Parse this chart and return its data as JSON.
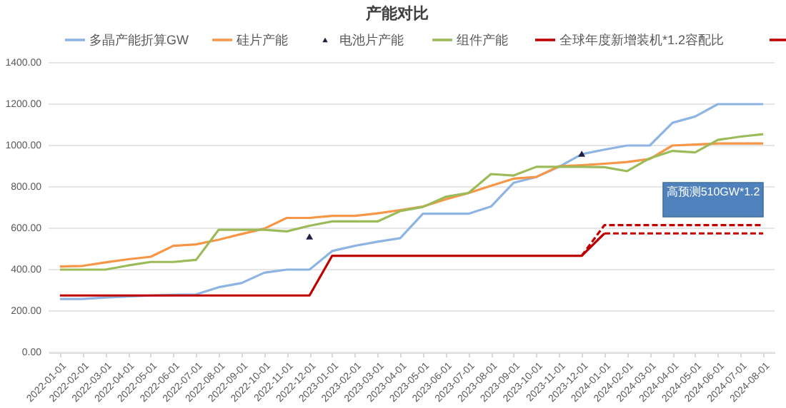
{
  "chart_data": {
    "type": "line",
    "title": "产能对比",
    "categories": [
      "2022-01-01",
      "2022-02-01",
      "2022-03-01",
      "2022-04-01",
      "2022-05-01",
      "2022-06-01",
      "2022-07-01",
      "2022-08-01",
      "2022-09-01",
      "2022-10-01",
      "2022-11-01",
      "2022-12-01",
      "2023-01-01",
      "2023-02-01",
      "2023-03-01",
      "2023-04-01",
      "2023-05-01",
      "2023-06-01",
      "2023-07-01",
      "2023-08-01",
      "2023-09-01",
      "2023-10-01",
      "2023-11-01",
      "2023-12-01",
      "2024-01-01",
      "2024-02-01",
      "2024-03-01",
      "2024-04-01",
      "2024-05-01",
      "2024-06-01",
      "2024-07-01",
      "2024-08-01"
    ],
    "ylim": [
      0,
      1400
    ],
    "yticks": [
      {
        "value": 0,
        "label": "0.00"
      },
      {
        "value": 200,
        "label": "200.00"
      },
      {
        "value": 400,
        "label": "400.00"
      },
      {
        "value": 600,
        "label": "600.00"
      },
      {
        "value": 800,
        "label": "800.00"
      },
      {
        "value": 1000,
        "label": "1000.00"
      },
      {
        "value": 1200,
        "label": "1200.00"
      },
      {
        "value": 1400,
        "label": "1400.00"
      }
    ],
    "grid": "y",
    "legend": "top",
    "marker": "none",
    "line_style": "solid",
    "annotations": [
      "高预测510GW*1.2"
    ],
    "series": [
      {
        "name": "多晶产能折算GW",
        "color": "#8db4e2",
        "values": [
          258,
          258,
          265,
          270,
          275,
          278,
          280,
          315,
          335,
          385,
          400,
          400,
          490,
          515,
          535,
          552,
          670,
          670,
          670,
          705,
          820,
          848,
          897,
          958,
          980,
          1000,
          1000,
          1110,
          1140,
          1200,
          1200,
          1200
        ]
      },
      {
        "name": "硅片产能",
        "color": "#f79646",
        "values": [
          415,
          418,
          435,
          450,
          462,
          515,
          522,
          545,
          572,
          598,
          650,
          650,
          660,
          660,
          672,
          688,
          705,
          740,
          770,
          805,
          840,
          848,
          900,
          905,
          912,
          920,
          935,
          1000,
          1005,
          1010,
          1010,
          1010
        ]
      },
      {
        "name": "电池片产能",
        "type": "scatter",
        "color": "#1f1f3f",
        "marker": "triangle",
        "values": [
          null,
          null,
          null,
          null,
          null,
          null,
          null,
          null,
          null,
          null,
          null,
          560,
          null,
          null,
          null,
          null,
          null,
          null,
          null,
          null,
          null,
          null,
          null,
          960,
          null,
          null,
          null,
          null,
          null,
          null,
          null,
          null
        ]
      },
      {
        "name": "组件产能",
        "color": "#9bbb59",
        "values": [
          400,
          400,
          400,
          420,
          437,
          437,
          447,
          593,
          593,
          593,
          585,
          612,
          633,
          633,
          633,
          683,
          703,
          752,
          770,
          862,
          855,
          897,
          897,
          897,
          895,
          876,
          938,
          974,
          967,
          1027,
          1043,
          1055
        ]
      },
      {
        "name": "全球年度新增装机*1.2容配比",
        "color": "#c00000",
        "values": [
          275,
          275,
          275,
          275,
          275,
          275,
          275,
          275,
          275,
          275,
          275,
          275,
          467,
          467,
          467,
          467,
          467,
          467,
          467,
          467,
          467,
          467,
          467,
          467,
          575,
          null,
          null,
          null,
          null,
          null,
          null,
          null
        ]
      },
      {
        "color": "#c00000",
        "line_style": "dashed",
        "values": [
          null,
          null,
          null,
          null,
          null,
          null,
          null,
          null,
          null,
          null,
          null,
          null,
          null,
          null,
          null,
          null,
          null,
          null,
          null,
          null,
          null,
          null,
          null,
          467,
          615,
          615,
          615,
          615,
          615,
          615,
          615,
          615
        ]
      },
      {
        "color": "#c00000",
        "line_style": "dashed",
        "values": [
          null,
          null,
          null,
          null,
          null,
          null,
          null,
          null,
          null,
          null,
          null,
          null,
          null,
          null,
          null,
          null,
          null,
          null,
          null,
          null,
          null,
          null,
          null,
          null,
          575,
          575,
          575,
          575,
          575,
          575,
          575,
          575
        ]
      }
    ]
  }
}
